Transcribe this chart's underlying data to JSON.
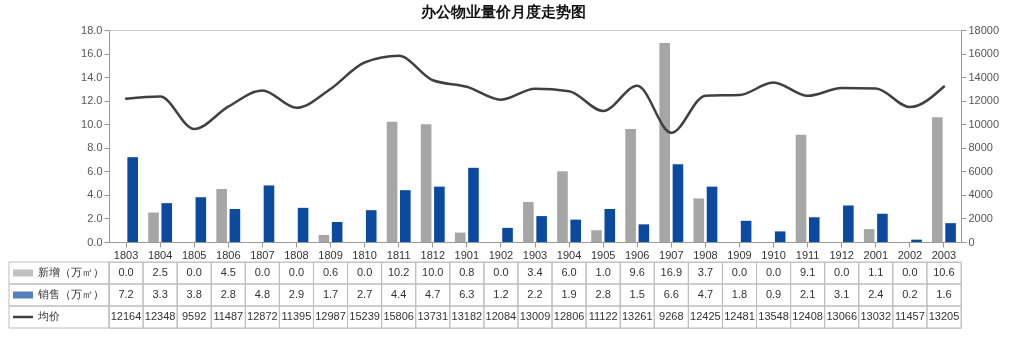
{
  "chart_data": {
    "type": "bar",
    "title": "办公物业量价月度走势图",
    "categories": [
      "1803",
      "1804",
      "1805",
      "1806",
      "1807",
      "1808",
      "1809",
      "1810",
      "1811",
      "1812",
      "1901",
      "1902",
      "1903",
      "1904",
      "1905",
      "1906",
      "1907",
      "1908",
      "1909",
      "1910",
      "1911",
      "1912",
      "2001",
      "2002",
      "2003"
    ],
    "series": [
      {
        "name": "新增（万㎡）",
        "color": "#a6a6a6",
        "values": [
          0.0,
          2.5,
          0.0,
          4.5,
          0.0,
          0.0,
          0.6,
          0.0,
          10.2,
          10.0,
          0.8,
          0.0,
          3.4,
          6.0,
          1.0,
          9.6,
          16.9,
          3.7,
          0.0,
          0.0,
          9.1,
          0.0,
          1.1,
          0.0,
          10.6
        ],
        "value_labels": [
          "0.0",
          "2.5",
          "0.0",
          "4.5",
          "0.0",
          "0.0",
          "0.6",
          "0.0",
          "10.2",
          "10.0",
          "0.8",
          "0.0",
          "3.4",
          "6.0",
          "1.0",
          "9.6",
          "16.9",
          "3.7",
          "0.0",
          "0.0",
          "9.1",
          "0.0",
          "1.1",
          "0.0",
          "10.6"
        ]
      },
      {
        "name": "销售（万㎡）",
        "color": "#0b4a9e",
        "values": [
          7.2,
          3.3,
          3.8,
          2.8,
          4.8,
          2.9,
          1.7,
          2.7,
          4.4,
          4.7,
          6.3,
          1.2,
          2.2,
          1.9,
          2.8,
          1.5,
          6.6,
          4.7,
          1.8,
          0.9,
          2.1,
          3.1,
          2.4,
          0.2,
          1.6
        ],
        "value_labels": [
          "7.2",
          "3.3",
          "3.8",
          "2.8",
          "4.8",
          "2.9",
          "1.7",
          "2.7",
          "4.4",
          "4.7",
          "6.3",
          "1.2",
          "2.2",
          "1.9",
          "2.8",
          "1.5",
          "6.6",
          "4.7",
          "1.8",
          "0.9",
          "2.1",
          "3.1",
          "2.4",
          "0.2",
          "1.6"
        ]
      },
      {
        "name": "均价",
        "color": "#404040",
        "type": "line",
        "axis": "y2",
        "values": [
          12164,
          12348,
          9592,
          11487,
          12872,
          11395,
          12987,
          15239,
          15806,
          13731,
          13182,
          12084,
          13009,
          12806,
          11122,
          13261,
          9268,
          12425,
          12481,
          13548,
          12408,
          13066,
          13032,
          11457,
          13205
        ],
        "value_labels": [
          "12164",
          "12348",
          "9592",
          "11487",
          "12872",
          "11395",
          "12987",
          "15239",
          "15806",
          "13731",
          "13182",
          "12084",
          "13009",
          "12806",
          "11122",
          "13261",
          "9268",
          "12425",
          "12481",
          "13548",
          "12408",
          "13066",
          "13032",
          "11457",
          "13205"
        ]
      }
    ],
    "ylim": [
      0,
      18
    ],
    "yticks": [
      {
        "value": 0,
        "label": "0.0"
      },
      {
        "value": 2,
        "label": "2.0"
      },
      {
        "value": 4,
        "label": "4.0"
      },
      {
        "value": 6,
        "label": "6.0"
      },
      {
        "value": 8,
        "label": "8.0"
      },
      {
        "value": 10,
        "label": "10.0"
      },
      {
        "value": 12,
        "label": "12.0"
      },
      {
        "value": 14,
        "label": "14.0"
      },
      {
        "value": 16,
        "label": "16.0"
      },
      {
        "value": 18,
        "label": "18.0"
      }
    ],
    "y2lim": [
      0,
      18000
    ],
    "y2ticks": [
      0,
      2000,
      4000,
      6000,
      8000,
      10000,
      12000,
      14000,
      16000,
      18000
    ],
    "grid": false,
    "legend": "bottom left",
    "line_style": "solid",
    "marker": "none"
  }
}
